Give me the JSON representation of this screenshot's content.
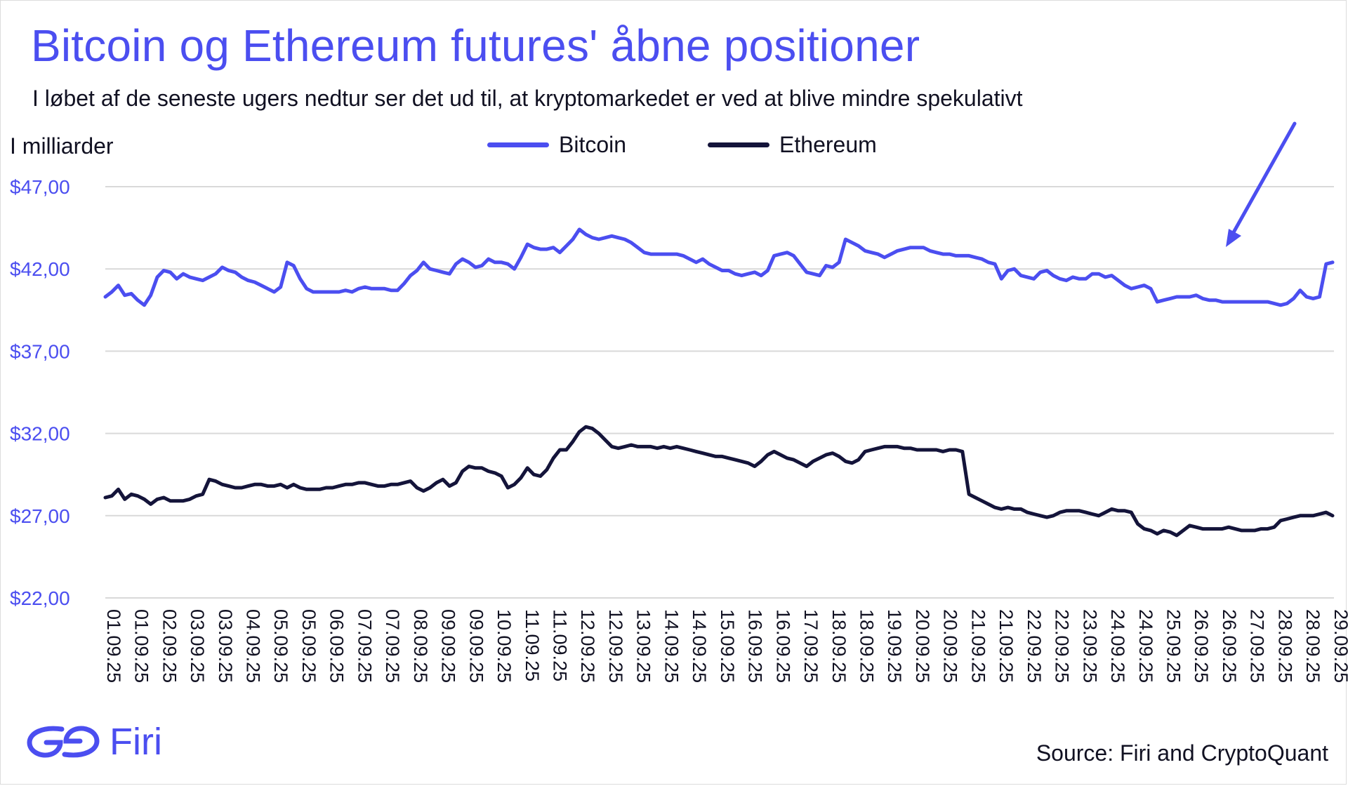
{
  "title": "Bitcoin og Ethereum futures' åbne positioner",
  "subtitle": "I løbet af de seneste ugers nedtur ser det ud til, at kryptomarkedet er ved at blive mindre spekulativt",
  "unit_label": "I milliarder",
  "source": "Source: Firi and CryptoQuant",
  "logo_text": "Firi",
  "colors": {
    "bitcoin": "#4b4ef0",
    "ethereum": "#14143a",
    "grid": "#d9d9d9",
    "accent": "#4b4ef0"
  },
  "chart_data": {
    "type": "line",
    "title": "Bitcoin og Ethereum futures' åbne positioner",
    "ylabel": "I milliarder",
    "ylim": [
      22,
      47
    ],
    "yticks": [
      22,
      27,
      32,
      37,
      42,
      47
    ],
    "ytick_labels": [
      "$22,00",
      "$27,00",
      "$32,00",
      "$37,00",
      "$42,00",
      "$47,00"
    ],
    "grid": true,
    "legend_position": "top-center",
    "annotation": "arrow pointing down-left to the recent Bitcoin uptick",
    "x_tick_labels": [
      "01.09.25",
      "01.09.25",
      "02.09.25",
      "03.09.25",
      "03.09.25",
      "04.09.25",
      "05.09.25",
      "05.09.25",
      "06.09.25",
      "07.09.25",
      "07.09.25",
      "08.09.25",
      "09.09.25",
      "09.09.25",
      "10.09.25",
      "11.09.25",
      "11.09.25",
      "12.09.25",
      "12.09.25",
      "13.09.25",
      "14.09.25",
      "14.09.25",
      "15.09.25",
      "16.09.25",
      "16.09.25",
      "17.09.25",
      "18.09.25",
      "18.09.25",
      "19.09.25",
      "20.09.25",
      "20.09.25",
      "21.09.25",
      "21.09.25",
      "22.09.25",
      "22.09.25",
      "23.09.25",
      "24.09.25",
      "24.09.25",
      "25.09.25",
      "26.09.25",
      "26.09.25",
      "27.09.25",
      "28.09.25",
      "28.09.25",
      "29.09.25"
    ],
    "series": [
      {
        "name": "Bitcoin",
        "color": "#4b4ef0",
        "values": [
          40.3,
          40.6,
          41.0,
          40.4,
          40.5,
          40.1,
          39.8,
          40.4,
          41.5,
          41.9,
          41.8,
          41.4,
          41.7,
          41.5,
          41.4,
          41.3,
          41.5,
          41.7,
          42.1,
          41.9,
          41.8,
          41.5,
          41.3,
          41.2,
          41.0,
          40.8,
          40.6,
          40.9,
          42.4,
          42.2,
          41.4,
          40.8,
          40.6,
          40.6,
          40.6,
          40.6,
          40.6,
          40.7,
          40.6,
          40.8,
          40.9,
          40.8,
          40.8,
          40.8,
          40.7,
          40.7,
          41.1,
          41.6,
          41.9,
          42.4,
          42.0,
          41.9,
          41.8,
          41.7,
          42.3,
          42.6,
          42.4,
          42.1,
          42.2,
          42.6,
          42.4,
          42.4,
          42.3,
          42.0,
          42.7,
          43.5,
          43.3,
          43.2,
          43.2,
          43.3,
          43.0,
          43.4,
          43.8,
          44.4,
          44.1,
          43.9,
          43.8,
          43.9,
          44.0,
          43.9,
          43.8,
          43.6,
          43.3,
          43.0,
          42.9,
          42.9,
          42.9,
          42.9,
          42.9,
          42.8,
          42.6,
          42.4,
          42.6,
          42.3,
          42.1,
          41.9,
          41.9,
          41.7,
          41.6,
          41.7,
          41.8,
          41.6,
          41.9,
          42.8,
          42.9,
          43.0,
          42.8,
          42.3,
          41.8,
          41.7,
          41.6,
          42.2,
          42.1,
          42.4,
          43.8,
          43.6,
          43.4,
          43.1,
          43.0,
          42.9,
          42.7,
          42.9,
          43.1,
          43.2,
          43.3,
          43.3,
          43.3,
          43.1,
          43.0,
          42.9,
          42.9,
          42.8,
          42.8,
          42.8,
          42.7,
          42.6,
          42.4,
          42.3,
          41.4,
          41.9,
          42.0,
          41.6,
          41.5,
          41.4,
          41.8,
          41.9,
          41.6,
          41.4,
          41.3,
          41.5,
          41.4,
          41.4,
          41.7,
          41.7,
          41.5,
          41.6,
          41.3,
          41.0,
          40.8,
          40.9,
          41.0,
          40.8,
          40.0,
          40.1,
          40.2,
          40.3,
          40.3,
          40.3,
          40.4,
          40.2,
          40.1,
          40.1,
          40.0,
          40.0,
          40.0,
          40.0,
          40.0,
          40.0,
          40.0,
          40.0,
          39.9,
          39.8,
          39.9,
          40.2,
          40.7,
          40.3,
          40.2,
          40.3,
          42.3,
          42.4
        ]
      },
      {
        "name": "Ethereum",
        "color": "#14143a",
        "values": [
          28.1,
          28.2,
          28.6,
          28.0,
          28.3,
          28.2,
          28.0,
          27.7,
          28.0,
          28.1,
          27.9,
          27.9,
          27.9,
          28.0,
          28.2,
          28.3,
          29.2,
          29.1,
          28.9,
          28.8,
          28.7,
          28.7,
          28.8,
          28.9,
          28.9,
          28.8,
          28.8,
          28.9,
          28.7,
          28.9,
          28.7,
          28.6,
          28.6,
          28.6,
          28.7,
          28.7,
          28.8,
          28.9,
          28.9,
          29.0,
          29.0,
          28.9,
          28.8,
          28.8,
          28.9,
          28.9,
          29.0,
          29.1,
          28.7,
          28.5,
          28.7,
          29.0,
          29.2,
          28.8,
          29.0,
          29.7,
          30.0,
          29.9,
          29.9,
          29.7,
          29.6,
          29.4,
          28.7,
          28.9,
          29.3,
          29.9,
          29.5,
          29.4,
          29.8,
          30.5,
          31.0,
          31.0,
          31.5,
          32.1,
          32.4,
          32.3,
          32.0,
          31.6,
          31.2,
          31.1,
          31.2,
          31.3,
          31.2,
          31.2,
          31.2,
          31.1,
          31.2,
          31.1,
          31.2,
          31.1,
          31.0,
          30.9,
          30.8,
          30.7,
          30.6,
          30.6,
          30.5,
          30.4,
          30.3,
          30.2,
          30.0,
          30.3,
          30.7,
          30.9,
          30.7,
          30.5,
          30.4,
          30.2,
          30.0,
          30.3,
          30.5,
          30.7,
          30.8,
          30.6,
          30.3,
          30.2,
          30.4,
          30.9,
          31.0,
          31.1,
          31.2,
          31.2,
          31.2,
          31.1,
          31.1,
          31.0,
          31.0,
          31.0,
          31.0,
          30.9,
          31.0,
          31.0,
          30.9,
          28.3,
          28.1,
          27.9,
          27.7,
          27.5,
          27.4,
          27.5,
          27.4,
          27.4,
          27.2,
          27.1,
          27.0,
          26.9,
          27.0,
          27.2,
          27.3,
          27.3,
          27.3,
          27.2,
          27.1,
          27.0,
          27.2,
          27.4,
          27.3,
          27.3,
          27.2,
          26.5,
          26.2,
          26.1,
          25.9,
          26.1,
          26.0,
          25.8,
          26.1,
          26.4,
          26.3,
          26.2,
          26.2,
          26.2,
          26.2,
          26.3,
          26.2,
          26.1,
          26.1,
          26.1,
          26.2,
          26.2,
          26.3,
          26.7,
          26.8,
          26.9,
          27.0,
          27.0,
          27.0,
          27.1,
          27.2,
          27.0
        ]
      }
    ]
  }
}
